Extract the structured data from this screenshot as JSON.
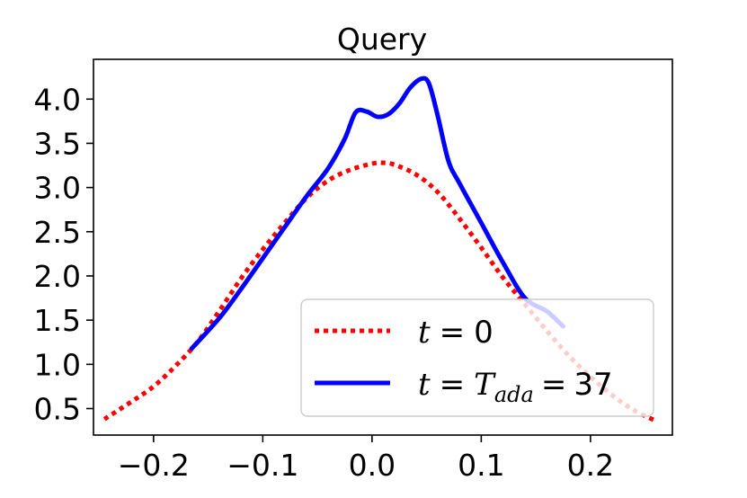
{
  "chart_data": {
    "type": "line",
    "title": "Query",
    "xlabel": "",
    "ylabel": "",
    "xlim": [
      -0.255,
      0.275
    ],
    "ylim": [
      0.2,
      4.45
    ],
    "xticks": [
      -0.2,
      -0.1,
      0.0,
      0.1,
      0.2
    ],
    "xtick_labels": [
      "−0.2",
      "−0.1",
      "0.0",
      "0.1",
      "0.2"
    ],
    "yticks": [
      0.5,
      1.0,
      1.5,
      2.0,
      2.5,
      3.0,
      3.5,
      4.0
    ],
    "ytick_labels": [
      "0.5",
      "1.0",
      "1.5",
      "2.0",
      "2.5",
      "3.0",
      "3.5",
      "4.0"
    ],
    "grid": false,
    "legend_position": "lower-right",
    "series": [
      {
        "name": "t = 0",
        "legend_var": "t",
        "legend_rhs": "0",
        "color": "#ff0000",
        "style": "dotted",
        "x": [
          -0.245,
          -0.22,
          -0.2,
          -0.18,
          -0.16,
          -0.14,
          -0.12,
          -0.1,
          -0.08,
          -0.06,
          -0.04,
          -0.02,
          0.0,
          0.01,
          0.02,
          0.04,
          0.06,
          0.08,
          0.1,
          0.12,
          0.14,
          0.16,
          0.18,
          0.2,
          0.22,
          0.24,
          0.26
        ],
        "y": [
          0.38,
          0.58,
          0.75,
          0.98,
          1.25,
          1.6,
          1.97,
          2.3,
          2.6,
          2.88,
          3.08,
          3.2,
          3.27,
          3.28,
          3.26,
          3.15,
          2.95,
          2.65,
          2.32,
          1.98,
          1.68,
          1.38,
          1.1,
          0.86,
          0.65,
          0.48,
          0.36
        ]
      },
      {
        "name": "t = T_ada = 37",
        "legend_var": "t",
        "legend_mid": "T",
        "legend_sub": "ada",
        "legend_rhs": "37",
        "color": "#0000ff",
        "style": "solid",
        "x": [
          -0.165,
          -0.14,
          -0.12,
          -0.1,
          -0.08,
          -0.06,
          -0.04,
          -0.025,
          -0.015,
          -0.005,
          0.005,
          0.015,
          0.025,
          0.035,
          0.045,
          0.052,
          0.06,
          0.07,
          0.08,
          0.1,
          0.12,
          0.14,
          0.16,
          0.175
        ],
        "y": [
          1.18,
          1.52,
          1.85,
          2.2,
          2.55,
          2.9,
          3.22,
          3.55,
          3.85,
          3.86,
          3.8,
          3.83,
          3.95,
          4.13,
          4.23,
          4.18,
          3.82,
          3.3,
          3.05,
          2.6,
          2.15,
          1.75,
          1.6,
          1.43
        ]
      }
    ]
  }
}
